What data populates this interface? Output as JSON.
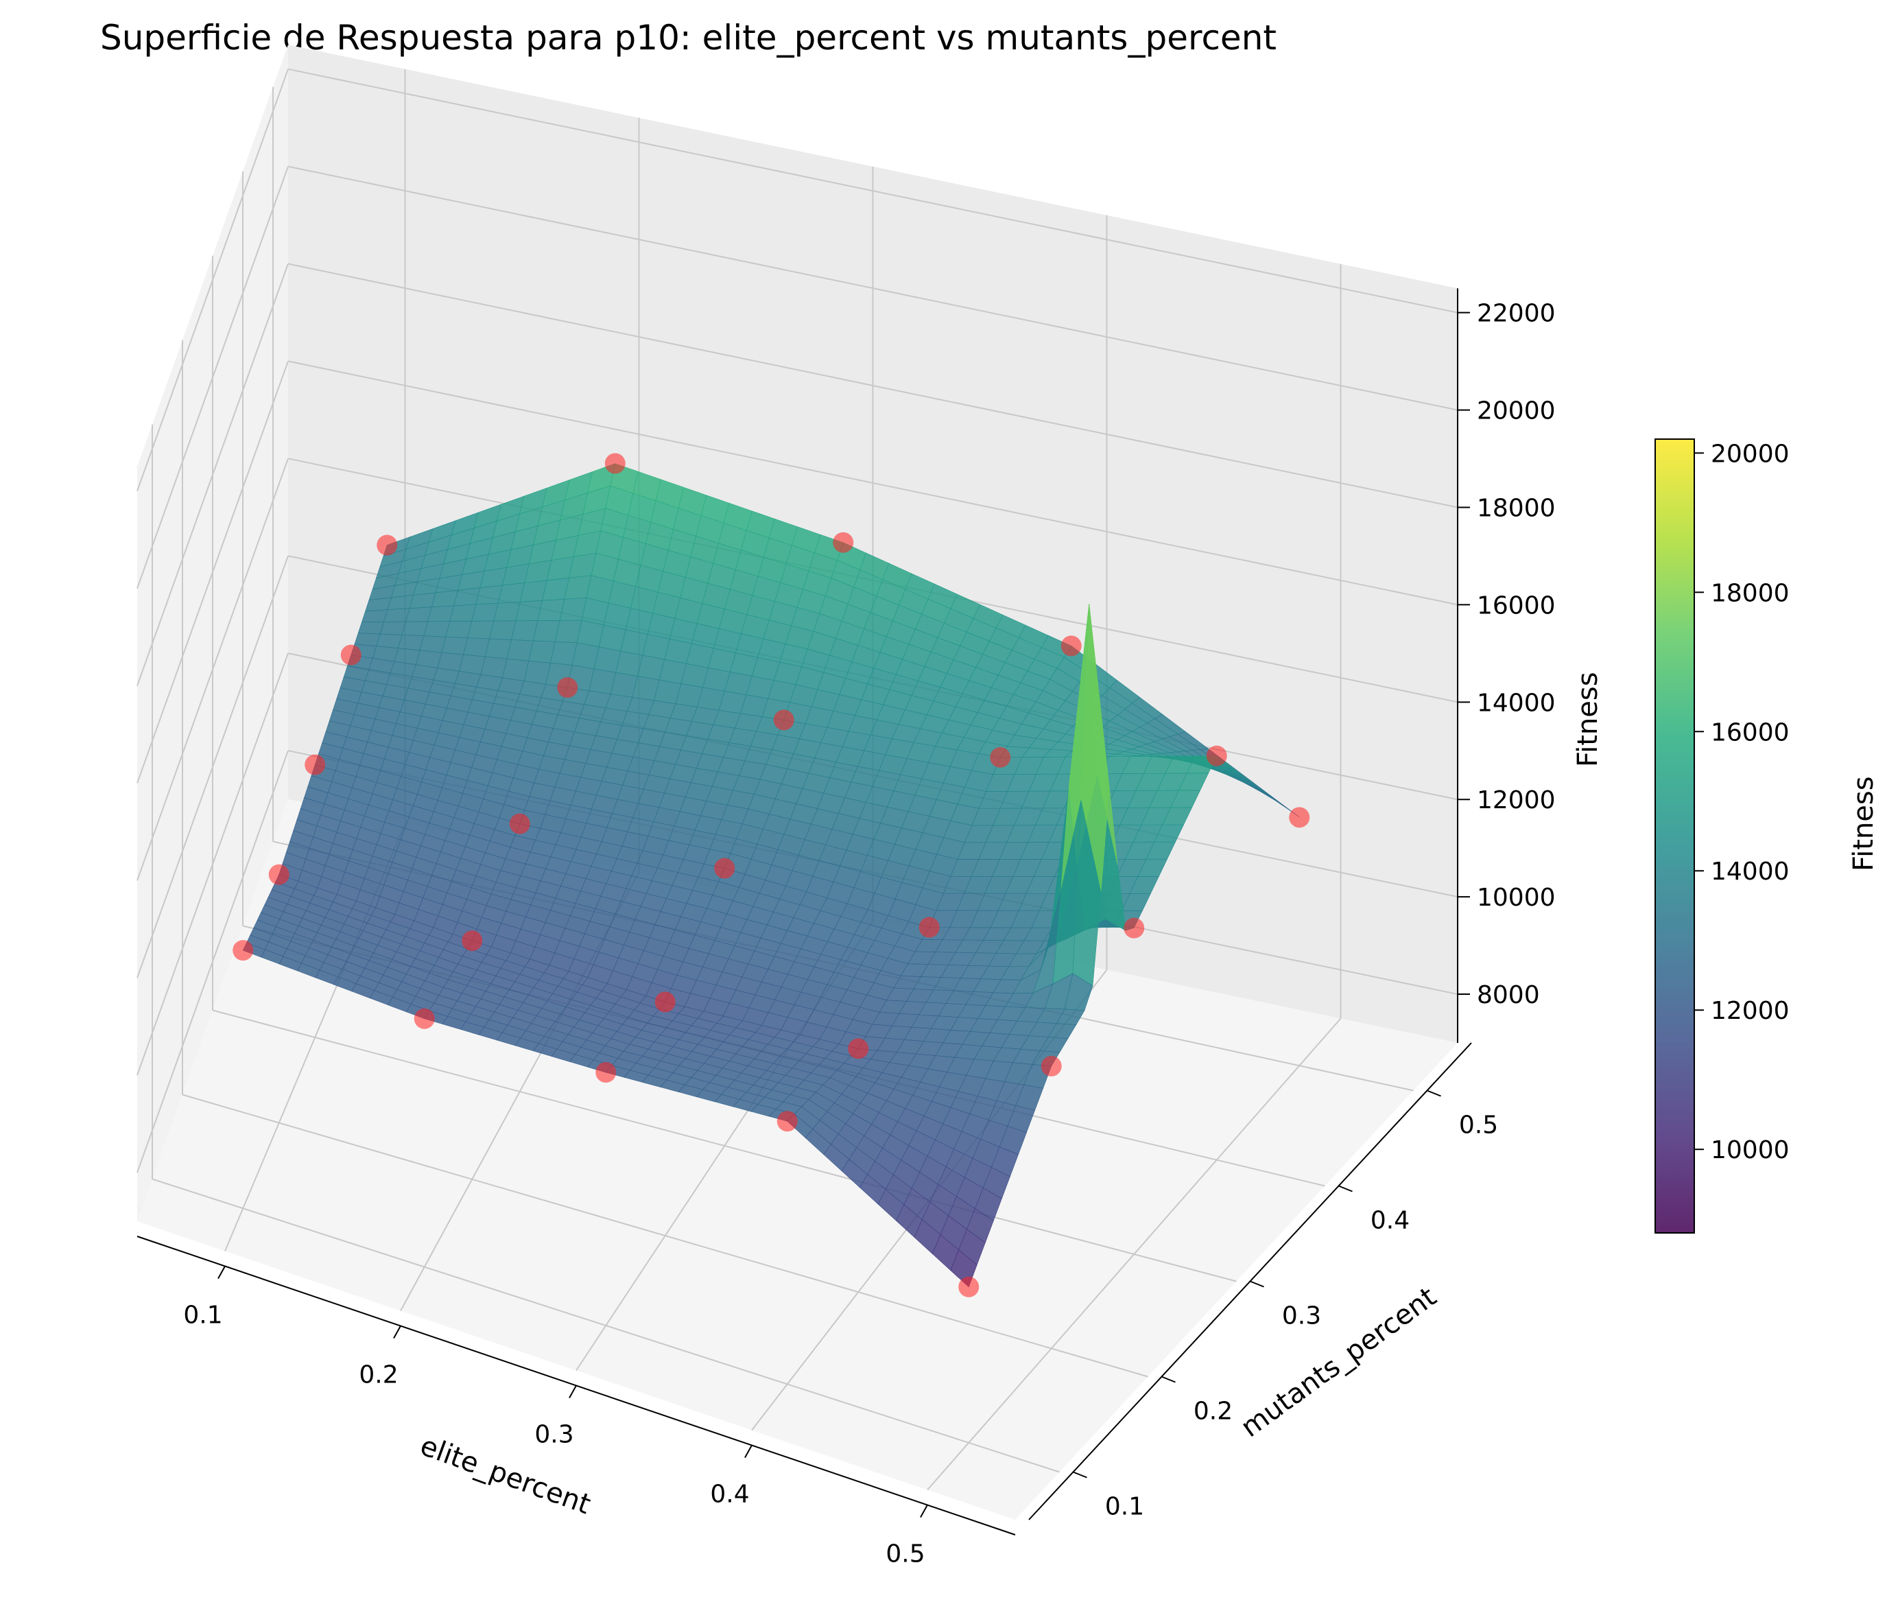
{
  "chart_data": {
    "type": "surface3d",
    "title": "Superficie de Respuesta para p10: elite_percent vs mutants_percent",
    "xlabel": "elite_percent",
    "ylabel": "mutants_percent",
    "zlabel": "Fitness",
    "colormap": "viridis",
    "x_ticks": [
      "0.1",
      "0.2",
      "0.3",
      "0.4",
      "0.5"
    ],
    "y_ticks": [
      "0.1",
      "0.2",
      "0.3",
      "0.4",
      "0.5"
    ],
    "z_ticks": [
      "8000",
      "10000",
      "12000",
      "14000",
      "16000",
      "18000",
      "20000",
      "22000"
    ],
    "xlim": [
      0.05,
      0.55
    ],
    "ylim": [
      0.05,
      0.55
    ],
    "zlim": [
      7000,
      22500
    ],
    "colorbar": {
      "label": "Fitness",
      "range": [
        8800,
        20200
      ],
      "ticks": [
        "10000",
        "12000",
        "14000",
        "16000",
        "18000",
        "20000"
      ]
    },
    "grid": true,
    "points": [
      {
        "elite": 0.1,
        "mutants": 0.1,
        "fitness": 12300,
        "color": "red"
      },
      {
        "elite": 0.2,
        "mutants": 0.1,
        "fitness": 12100,
        "color": "red"
      },
      {
        "elite": 0.3,
        "mutants": 0.1,
        "fitness": 12200,
        "color": "red"
      },
      {
        "elite": 0.4,
        "mutants": 0.1,
        "fitness": 12400,
        "color": "red"
      },
      {
        "elite": 0.5,
        "mutants": 0.1,
        "fitness": 10200,
        "color": "red"
      },
      {
        "elite": 0.1,
        "mutants": 0.2,
        "fitness": 12100,
        "color": "red"
      },
      {
        "elite": 0.2,
        "mutants": 0.2,
        "fitness": 11900,
        "color": "red"
      },
      {
        "elite": 0.3,
        "mutants": 0.2,
        "fitness": 11800,
        "color": "red"
      },
      {
        "elite": 0.4,
        "mutants": 0.2,
        "fitness": 12000,
        "color": "red"
      },
      {
        "elite": 0.5,
        "mutants": 0.2,
        "fitness": 12800,
        "color": "red"
      },
      {
        "elite": 0.1,
        "mutants": 0.3,
        "fitness": 12600,
        "color": "red"
      },
      {
        "elite": 0.2,
        "mutants": 0.3,
        "fitness": 12500,
        "color": "red"
      },
      {
        "elite": 0.3,
        "mutants": 0.3,
        "fitness": 12700,
        "color": "red"
      },
      {
        "elite": 0.4,
        "mutants": 0.3,
        "fitness": 12600,
        "color": "red"
      },
      {
        "elite": 0.5,
        "mutants": 0.3,
        "fitness": 13700,
        "color": "red"
      },
      {
        "elite": 0.1,
        "mutants": 0.4,
        "fitness": 13100,
        "color": "red"
      },
      {
        "elite": 0.2,
        "mutants": 0.4,
        "fitness": 13500,
        "color": "red"
      },
      {
        "elite": 0.3,
        "mutants": 0.4,
        "fitness": 13900,
        "color": "red"
      },
      {
        "elite": 0.4,
        "mutants": 0.4,
        "fitness": 14200,
        "color": "red"
      },
      {
        "elite": 0.5,
        "mutants": 0.4,
        "fitness": 15300,
        "color": "red"
      },
      {
        "elite": 0.1,
        "mutants": 0.5,
        "fitness": 13600,
        "color": "red"
      },
      {
        "elite": 0.2,
        "mutants": 0.5,
        "fitness": 16300,
        "color": "red"
      },
      {
        "elite": 0.3,
        "mutants": 0.5,
        "fitness": 15700,
        "color": "red"
      },
      {
        "elite": 0.4,
        "mutants": 0.5,
        "fitness": 14600,
        "color": "red"
      },
      {
        "elite": 0.5,
        "mutants": 0.5,
        "fitness": 12100,
        "color": "red"
      }
    ]
  }
}
